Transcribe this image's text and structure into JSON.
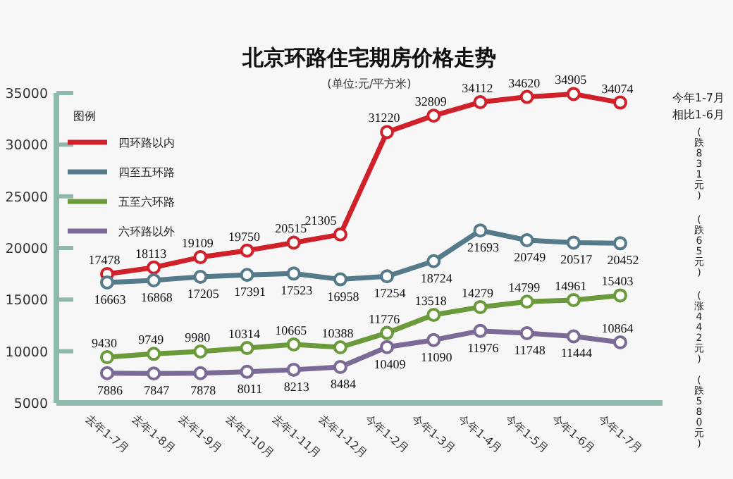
{
  "chart_data": {
    "type": "line",
    "title": "北京环路住宅期房价格走势",
    "subtitle": "(单位:元/平方米)",
    "legend_title": "图例",
    "categories": [
      "去年1-7月",
      "去年1-8月",
      "去年1-9月",
      "去年1-10月",
      "去年1-11月",
      "去年1-12月",
      "今年1-2月",
      "今年1-3月",
      "今年1-4月",
      "今年1-5月",
      "今年1-6月",
      "今年1-7月"
    ],
    "series": [
      {
        "name": "四环路以内",
        "color": "#d0202a",
        "values": [
          17478,
          18113,
          19109,
          19750,
          20515,
          21305,
          31220,
          32809,
          34112,
          34620,
          34905,
          34074
        ]
      },
      {
        "name": "四至五环路",
        "color": "#557a8a",
        "values": [
          16663,
          16868,
          17205,
          17391,
          17523,
          16958,
          17254,
          18724,
          21693,
          20749,
          20517,
          20452
        ]
      },
      {
        "name": "五至六环路",
        "color": "#6a9a3a",
        "values": [
          9430,
          9749,
          9980,
          10314,
          10665,
          10388,
          11776,
          13518,
          14279,
          14799,
          14961,
          15403
        ]
      },
      {
        "name": "六环路以外",
        "color": "#7a6a95",
        "values": [
          7886,
          7847,
          7878,
          8011,
          8213,
          8484,
          10409,
          11090,
          11976,
          11748,
          11444,
          10864
        ]
      }
    ],
    "ylim": [
      5000,
      35000
    ],
    "yticks": [
      5000,
      10000,
      15000,
      20000,
      25000,
      30000,
      35000
    ],
    "data_labels": true,
    "legend": "top left",
    "marker": "circle",
    "line_style": "solid",
    "annotations": [
      "今年1-7月",
      "相比1-6月",
      "(跌831元)",
      "(跌65元)",
      "(涨442元)",
      "(跌580元)"
    ]
  }
}
